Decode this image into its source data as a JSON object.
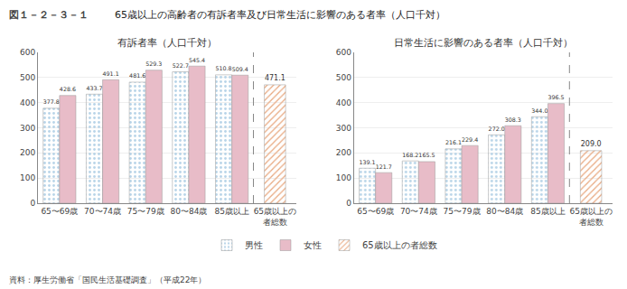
{
  "title": "65歳以上の高齢者の有訴者率及び日常生活に影響のある者率（人口千対）",
  "annotations": [
    "図１－２－３－１",
    "資料：厚生労働省「国民生活基礎調査」（平成22年）"
  ],
  "chart_data": [
    {
      "type": "bar",
      "title": "有訴者率（人口千対）",
      "categories": [
        "65〜69歳",
        "70〜74歳",
        "75〜79歳",
        "80〜84歳",
        "85歳以上",
        "65歳以上の\n者総数"
      ],
      "series": [
        {
          "name": "男性",
          "color": "#b8d4e8",
          "values": [
            377.8,
            433.7,
            481.6,
            522.7,
            510.8,
            null
          ]
        },
        {
          "name": "女性",
          "color": "#e8bcc8",
          "values": [
            428.6,
            491.1,
            529.3,
            545.4,
            509.4,
            null
          ]
        },
        {
          "name": "65歳以上の者総数",
          "color": "#e8a880",
          "values": [
            null,
            null,
            null,
            null,
            null,
            471.1
          ]
        }
      ],
      "ylim": [
        0,
        600
      ],
      "yticks": [
        0,
        100,
        200,
        300,
        400,
        500,
        600
      ],
      "grid": true,
      "data_labels": true,
      "legend": "bottom"
    },
    {
      "type": "bar",
      "title": "日常生活に影響のある者率（人口千対）",
      "categories": [
        "65〜69歳",
        "70〜74歳",
        "75〜79歳",
        "80〜84歳",
        "85歳以上",
        "65歳以上の\n者総数"
      ],
      "series": [
        {
          "name": "男性",
          "color": "#b8d4e8",
          "values": [
            139.1,
            168.2,
            216.1,
            272.0,
            344.0,
            null
          ],
          "value_labels": [
            "139.1",
            "168.2",
            "216.1",
            "272.0",
            "344.0",
            null
          ]
        },
        {
          "name": "女性",
          "color": "#e8bcc8",
          "values": [
            121.7,
            165.5,
            229.4,
            308.3,
            396.5,
            null
          ]
        },
        {
          "name": "65歳以上の者総数",
          "color": "#e8a880",
          "values": [
            null,
            null,
            null,
            null,
            null,
            209.0
          ],
          "value_labels": [
            null,
            null,
            null,
            null,
            null,
            "209.0"
          ]
        }
      ],
      "ylim": [
        0,
        600
      ],
      "yticks": [
        0,
        100,
        200,
        300,
        400,
        500,
        600
      ],
      "grid": true,
      "data_labels": true,
      "legend": "bottom"
    }
  ]
}
